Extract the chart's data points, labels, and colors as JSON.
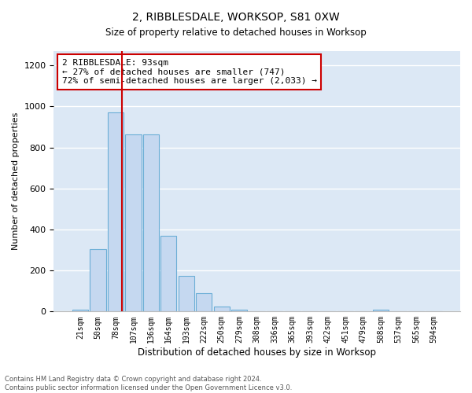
{
  "title": "2, RIBBLESDALE, WORKSOP, S81 0XW",
  "subtitle": "Size of property relative to detached houses in Worksop",
  "xlabel": "Distribution of detached houses by size in Worksop",
  "ylabel": "Number of detached properties",
  "footer_line1": "Contains HM Land Registry data © Crown copyright and database right 2024.",
  "footer_line2": "Contains public sector information licensed under the Open Government Licence v3.0.",
  "bar_labels": [
    "21sqm",
    "50sqm",
    "78sqm",
    "107sqm",
    "136sqm",
    "164sqm",
    "193sqm",
    "222sqm",
    "250sqm",
    "279sqm",
    "308sqm",
    "336sqm",
    "365sqm",
    "393sqm",
    "422sqm",
    "451sqm",
    "479sqm",
    "508sqm",
    "537sqm",
    "565sqm",
    "594sqm"
  ],
  "bar_values": [
    10,
    305,
    970,
    862,
    862,
    370,
    172,
    88,
    25,
    8,
    3,
    3,
    3,
    3,
    0,
    0,
    0,
    8,
    0,
    0,
    0
  ],
  "bar_color": "#c5d8f0",
  "bar_edgecolor": "#6baed6",
  "annotation_title": "2 RIBBLESDALE: 93sqm",
  "annotation_line1": "← 27% of detached houses are smaller (747)",
  "annotation_line2": "72% of semi-detached houses are larger (2,033) →",
  "vline_color": "#cc0000",
  "annotation_box_edgecolor": "#cc0000",
  "vline_x_index": 2.35,
  "ylim": [
    0,
    1270
  ],
  "yticks": [
    0,
    200,
    400,
    600,
    800,
    1000,
    1200
  ],
  "grid_color": "#ffffff",
  "plot_bg_color": "#dce8f5"
}
